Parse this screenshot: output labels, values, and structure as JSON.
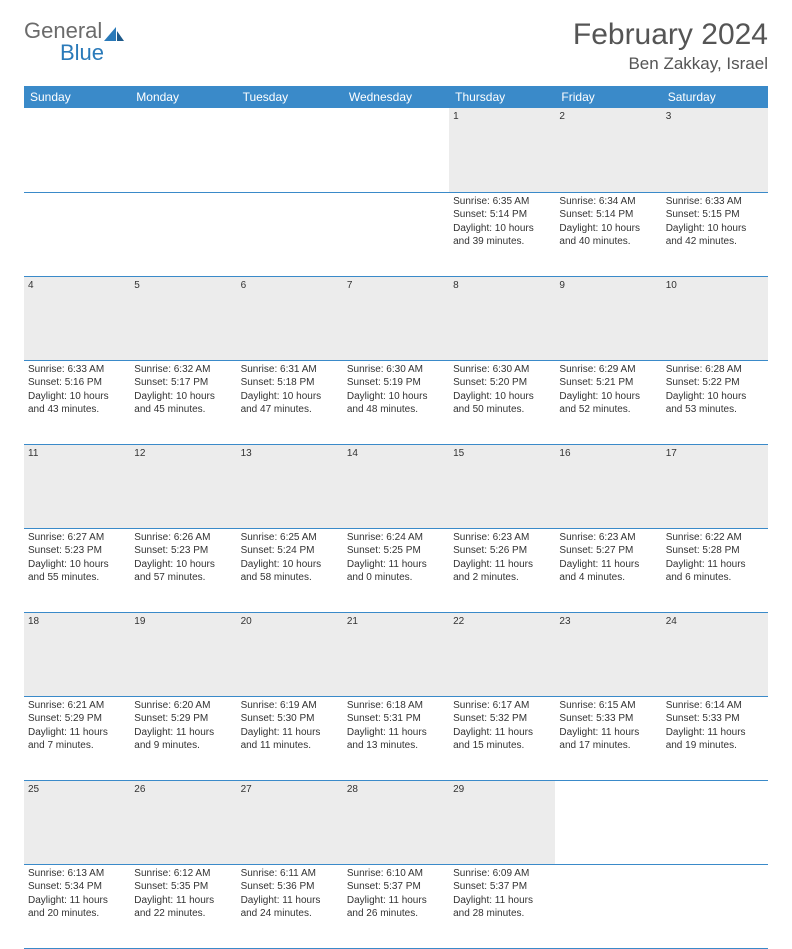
{
  "logo": {
    "general": "General",
    "blue": "Blue"
  },
  "title": "February 2024",
  "location": "Ben Zakkay, Israel",
  "colors": {
    "header_bg": "#3a8ac9",
    "header_text": "#ffffff",
    "daynum_bg": "#ececec",
    "border": "#3a8ac9",
    "logo_gray": "#6b6b6b",
    "logo_blue": "#2a7ab9"
  },
  "day_headers": [
    "Sunday",
    "Monday",
    "Tuesday",
    "Wednesday",
    "Thursday",
    "Friday",
    "Saturday"
  ],
  "weeks": [
    {
      "nums": [
        "",
        "",
        "",
        "",
        "1",
        "2",
        "3"
      ],
      "cells": [
        null,
        null,
        null,
        null,
        {
          "sunrise": "Sunrise: 6:35 AM",
          "sunset": "Sunset: 5:14 PM",
          "d1": "Daylight: 10 hours",
          "d2": "and 39 minutes."
        },
        {
          "sunrise": "Sunrise: 6:34 AM",
          "sunset": "Sunset: 5:14 PM",
          "d1": "Daylight: 10 hours",
          "d2": "and 40 minutes."
        },
        {
          "sunrise": "Sunrise: 6:33 AM",
          "sunset": "Sunset: 5:15 PM",
          "d1": "Daylight: 10 hours",
          "d2": "and 42 minutes."
        }
      ]
    },
    {
      "nums": [
        "4",
        "5",
        "6",
        "7",
        "8",
        "9",
        "10"
      ],
      "cells": [
        {
          "sunrise": "Sunrise: 6:33 AM",
          "sunset": "Sunset: 5:16 PM",
          "d1": "Daylight: 10 hours",
          "d2": "and 43 minutes."
        },
        {
          "sunrise": "Sunrise: 6:32 AM",
          "sunset": "Sunset: 5:17 PM",
          "d1": "Daylight: 10 hours",
          "d2": "and 45 minutes."
        },
        {
          "sunrise": "Sunrise: 6:31 AM",
          "sunset": "Sunset: 5:18 PM",
          "d1": "Daylight: 10 hours",
          "d2": "and 47 minutes."
        },
        {
          "sunrise": "Sunrise: 6:30 AM",
          "sunset": "Sunset: 5:19 PM",
          "d1": "Daylight: 10 hours",
          "d2": "and 48 minutes."
        },
        {
          "sunrise": "Sunrise: 6:30 AM",
          "sunset": "Sunset: 5:20 PM",
          "d1": "Daylight: 10 hours",
          "d2": "and 50 minutes."
        },
        {
          "sunrise": "Sunrise: 6:29 AM",
          "sunset": "Sunset: 5:21 PM",
          "d1": "Daylight: 10 hours",
          "d2": "and 52 minutes."
        },
        {
          "sunrise": "Sunrise: 6:28 AM",
          "sunset": "Sunset: 5:22 PM",
          "d1": "Daylight: 10 hours",
          "d2": "and 53 minutes."
        }
      ]
    },
    {
      "nums": [
        "11",
        "12",
        "13",
        "14",
        "15",
        "16",
        "17"
      ],
      "cells": [
        {
          "sunrise": "Sunrise: 6:27 AM",
          "sunset": "Sunset: 5:23 PM",
          "d1": "Daylight: 10 hours",
          "d2": "and 55 minutes."
        },
        {
          "sunrise": "Sunrise: 6:26 AM",
          "sunset": "Sunset: 5:23 PM",
          "d1": "Daylight: 10 hours",
          "d2": "and 57 minutes."
        },
        {
          "sunrise": "Sunrise: 6:25 AM",
          "sunset": "Sunset: 5:24 PM",
          "d1": "Daylight: 10 hours",
          "d2": "and 58 minutes."
        },
        {
          "sunrise": "Sunrise: 6:24 AM",
          "sunset": "Sunset: 5:25 PM",
          "d1": "Daylight: 11 hours",
          "d2": "and 0 minutes."
        },
        {
          "sunrise": "Sunrise: 6:23 AM",
          "sunset": "Sunset: 5:26 PM",
          "d1": "Daylight: 11 hours",
          "d2": "and 2 minutes."
        },
        {
          "sunrise": "Sunrise: 6:23 AM",
          "sunset": "Sunset: 5:27 PM",
          "d1": "Daylight: 11 hours",
          "d2": "and 4 minutes."
        },
        {
          "sunrise": "Sunrise: 6:22 AM",
          "sunset": "Sunset: 5:28 PM",
          "d1": "Daylight: 11 hours",
          "d2": "and 6 minutes."
        }
      ]
    },
    {
      "nums": [
        "18",
        "19",
        "20",
        "21",
        "22",
        "23",
        "24"
      ],
      "cells": [
        {
          "sunrise": "Sunrise: 6:21 AM",
          "sunset": "Sunset: 5:29 PM",
          "d1": "Daylight: 11 hours",
          "d2": "and 7 minutes."
        },
        {
          "sunrise": "Sunrise: 6:20 AM",
          "sunset": "Sunset: 5:29 PM",
          "d1": "Daylight: 11 hours",
          "d2": "and 9 minutes."
        },
        {
          "sunrise": "Sunrise: 6:19 AM",
          "sunset": "Sunset: 5:30 PM",
          "d1": "Daylight: 11 hours",
          "d2": "and 11 minutes."
        },
        {
          "sunrise": "Sunrise: 6:18 AM",
          "sunset": "Sunset: 5:31 PM",
          "d1": "Daylight: 11 hours",
          "d2": "and 13 minutes."
        },
        {
          "sunrise": "Sunrise: 6:17 AM",
          "sunset": "Sunset: 5:32 PM",
          "d1": "Daylight: 11 hours",
          "d2": "and 15 minutes."
        },
        {
          "sunrise": "Sunrise: 6:15 AM",
          "sunset": "Sunset: 5:33 PM",
          "d1": "Daylight: 11 hours",
          "d2": "and 17 minutes."
        },
        {
          "sunrise": "Sunrise: 6:14 AM",
          "sunset": "Sunset: 5:33 PM",
          "d1": "Daylight: 11 hours",
          "d2": "and 19 minutes."
        }
      ]
    },
    {
      "nums": [
        "25",
        "26",
        "27",
        "28",
        "29",
        "",
        ""
      ],
      "cells": [
        {
          "sunrise": "Sunrise: 6:13 AM",
          "sunset": "Sunset: 5:34 PM",
          "d1": "Daylight: 11 hours",
          "d2": "and 20 minutes."
        },
        {
          "sunrise": "Sunrise: 6:12 AM",
          "sunset": "Sunset: 5:35 PM",
          "d1": "Daylight: 11 hours",
          "d2": "and 22 minutes."
        },
        {
          "sunrise": "Sunrise: 6:11 AM",
          "sunset": "Sunset: 5:36 PM",
          "d1": "Daylight: 11 hours",
          "d2": "and 24 minutes."
        },
        {
          "sunrise": "Sunrise: 6:10 AM",
          "sunset": "Sunset: 5:37 PM",
          "d1": "Daylight: 11 hours",
          "d2": "and 26 minutes."
        },
        {
          "sunrise": "Sunrise: 6:09 AM",
          "sunset": "Sunset: 5:37 PM",
          "d1": "Daylight: 11 hours",
          "d2": "and 28 minutes."
        },
        null,
        null
      ]
    }
  ]
}
